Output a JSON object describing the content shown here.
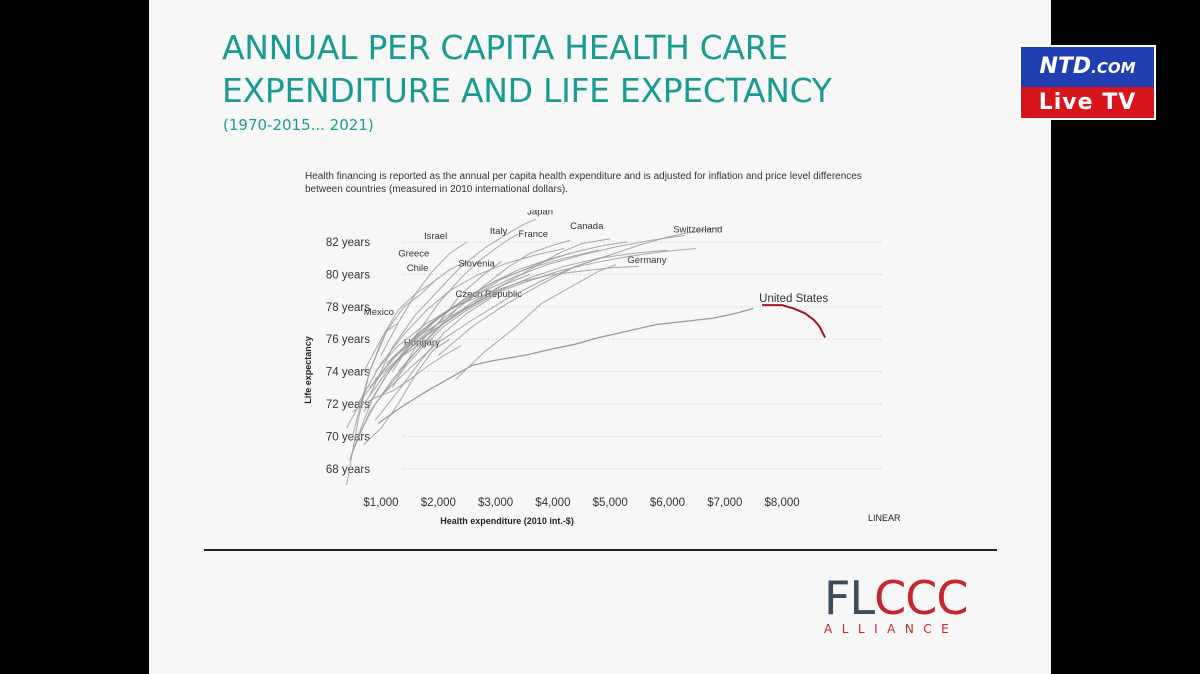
{
  "slide": {
    "title_lines": [
      "ANNUAL PER CAPITA HEALTH CARE",
      "EXPENDITURE AND LIFE EXPECTANCY"
    ],
    "subtitle": "(1970-2015... 2021)",
    "note": "Health financing is reported as the annual per capita health expenditure and is adjusted for inflation and price level differences between countries (measured in 2010 international dollars).",
    "logo": {
      "main_a": "FL",
      "main_b": "CCC",
      "sub": "ALLIANCE"
    },
    "colors": {
      "title": "#1a9b91",
      "accent_red": "#c4262e",
      "line_gray": "#9a9a9a",
      "us_recent": "#a3162a"
    }
  },
  "badge": {
    "top_a": "NTD",
    "top_b": ".COM",
    "bottom": "Live TV"
  },
  "chart_data": {
    "type": "line",
    "xlabel": "Health expenditure (2010 int.-$)",
    "ylabel": "Life expectancy",
    "scale_label": "LINEAR",
    "xlim": [
      0,
      8800
    ],
    "ylim": [
      67,
      84
    ],
    "grid": "horizontal dotted",
    "x_ticks": [
      {
        "value": 1000,
        "label": "$1,000"
      },
      {
        "value": 2000,
        "label": "$2,000"
      },
      {
        "value": 3000,
        "label": "$3,000"
      },
      {
        "value": 4000,
        "label": "$4,000"
      },
      {
        "value": 5000,
        "label": "$5,000"
      },
      {
        "value": 6000,
        "label": "$6,000"
      },
      {
        "value": 7000,
        "label": "$7,000"
      },
      {
        "value": 8000,
        "label": "$8,000"
      }
    ],
    "y_ticks": [
      {
        "value": 68,
        "label": "68 years"
      },
      {
        "value": 70,
        "label": "70 years"
      },
      {
        "value": 72,
        "label": "72 years"
      },
      {
        "value": 74,
        "label": "74 years"
      },
      {
        "value": 76,
        "label": "76 years"
      },
      {
        "value": 78,
        "label": "78 years"
      },
      {
        "value": 80,
        "label": "80 years"
      },
      {
        "value": 82,
        "label": "82 years"
      }
    ],
    "series": [
      {
        "name": "United States",
        "label_at": [
          7600,
          78.3
        ],
        "highlight_from": 7600,
        "x": [
          950,
          1350,
          1800,
          2200,
          2600,
          3000,
          3500,
          4000,
          4400,
          4800,
          5300,
          5800,
          6300,
          6800,
          7200,
          7500,
          7650,
          7800,
          8000,
          8200,
          8400,
          8550,
          8650,
          8750
        ],
        "y": [
          70.8,
          71.8,
          72.8,
          73.6,
          74.4,
          74.7,
          75.0,
          75.4,
          75.7,
          76.1,
          76.5,
          76.9,
          77.1,
          77.3,
          77.6,
          77.9,
          78.1,
          78.1,
          78.1,
          77.9,
          77.6,
          77.2,
          76.8,
          76.1
        ]
      },
      {
        "name": "Switzerland",
        "label_at": [
          6100,
          82.6
        ],
        "x": [
          2000,
          2600,
          3200,
          3800,
          4400,
          5000,
          5500,
          6000,
          6400,
          6900
        ],
        "y": [
          75.0,
          76.8,
          78.2,
          79.4,
          80.5,
          81.2,
          81.8,
          82.3,
          82.6,
          82.9
        ]
      },
      {
        "name": "Japan",
        "label_at": [
          3550,
          83.7
        ],
        "x": [
          800,
          1200,
          1600,
          2000,
          2400,
          2800,
          3200,
          3500,
          3700
        ],
        "y": [
          72.5,
          75.5,
          77.5,
          79.0,
          80.5,
          81.6,
          82.5,
          83.1,
          83.4
        ]
      },
      {
        "name": "Canada",
        "label_at": [
          4300,
          82.8
        ],
        "x": [
          1700,
          2200,
          2700,
          3200,
          3700,
          4100,
          4500,
          5000
        ],
        "y": [
          76.0,
          77.2,
          78.4,
          79.5,
          80.5,
          81.3,
          81.9,
          82.2
        ]
      },
      {
        "name": "France",
        "label_at": [
          3400,
          82.3
        ],
        "x": [
          1300,
          1800,
          2300,
          2800,
          3200,
          3600,
          4000,
          4300
        ],
        "y": [
          74.0,
          76.0,
          77.8,
          79.3,
          80.4,
          81.3,
          81.8,
          82.1
        ]
      },
      {
        "name": "Italy",
        "label_at": [
          2900,
          82.5
        ],
        "x": [
          1200,
          1600,
          2000,
          2400,
          2700,
          3000,
          3200,
          3400
        ],
        "y": [
          74.0,
          76.2,
          78.2,
          79.8,
          80.8,
          81.6,
          82.1,
          82.5
        ]
      },
      {
        "name": "Israel",
        "label_at": [
          1750,
          82.2
        ],
        "x": [
          1000,
          1300,
          1600,
          1900,
          2200,
          2500
        ],
        "y": [
          75.0,
          77.0,
          78.8,
          80.2,
          81.3,
          82.0
        ]
      },
      {
        "name": "Greece",
        "label_at": [
          1300,
          81.1
        ],
        "x": [
          700,
          1000,
          1300,
          1600,
          1900,
          2200,
          2500
        ],
        "y": [
          74.0,
          76.0,
          77.8,
          78.8,
          79.5,
          80.3,
          80.8
        ]
      },
      {
        "name": "Slovenia",
        "label_at": [
          2350,
          80.5
        ],
        "x": [
          1200,
          1600,
          2000,
          2400,
          2800,
          3100
        ],
        "y": [
          73.0,
          75.5,
          77.0,
          78.8,
          80.0,
          80.8
        ]
      },
      {
        "name": "Chile",
        "label_at": [
          1450,
          80.2
        ],
        "x": [
          500,
          800,
          1100,
          1400,
          1700,
          2000
        ],
        "y": [
          70.0,
          74.0,
          76.5,
          78.0,
          78.8,
          79.8
        ]
      },
      {
        "name": "Germany",
        "label_at": [
          5300,
          80.7
        ],
        "x": [
          2300,
          2800,
          3300,
          3800,
          4300,
          4800,
          5100
        ],
        "y": [
          73.5,
          75.2,
          76.6,
          78.2,
          79.2,
          80.2,
          80.6
        ]
      },
      {
        "name": "Czech Republic",
        "label_at": [
          2300,
          78.6
        ],
        "x": [
          900,
          1300,
          1700,
          2100,
          2500,
          2900,
          3100
        ],
        "y": [
          71.0,
          72.8,
          74.7,
          76.4,
          77.6,
          78.5,
          79.0
        ]
      },
      {
        "name": "Mexico",
        "label_at": [
          700,
          77.5
        ],
        "x": [
          400,
          600,
          800,
          1000,
          1100,
          1300
        ],
        "y": [
          67.0,
          71.0,
          74.0,
          75.8,
          76.5,
          77.0
        ]
      },
      {
        "name": "Hungary",
        "label_at": [
          1400,
          75.6
        ],
        "x": [
          700,
          1000,
          1300,
          1600,
          1900,
          2200
        ],
        "y": [
          69.5,
          70.5,
          72.0,
          73.8,
          75.3,
          76.0
        ]
      },
      {
        "x": [
          600,
          1000,
          1400,
          1800,
          2200,
          2700,
          3200,
          3700,
          4200
        ],
        "y": [
          72.0,
          74.5,
          76.3,
          77.8,
          79.0,
          80.0,
          80.7,
          81.2,
          81.6
        ]
      },
      {
        "x": [
          900,
          1400,
          1900,
          2400,
          2900,
          3400,
          3900,
          4400,
          4900,
          5300
        ],
        "y": [
          73.5,
          75.5,
          77.0,
          78.3,
          79.4,
          80.3,
          80.9,
          81.4,
          81.8,
          82.0
        ]
      },
      {
        "x": [
          1100,
          1600,
          2100,
          2700,
          3300,
          3900,
          4500,
          5100,
          5700,
          6300
        ],
        "y": [
          74.5,
          76.2,
          77.6,
          78.8,
          79.8,
          80.6,
          81.2,
          81.7,
          82.1,
          82.4
        ]
      },
      {
        "x": [
          700,
          1100,
          1500,
          2000,
          2500,
          3000,
          3600,
          4200,
          4800
        ],
        "y": [
          71.5,
          73.8,
          75.6,
          77.3,
          78.6,
          79.6,
          80.4,
          81.0,
          81.5
        ]
      },
      {
        "x": [
          500,
          800,
          1200,
          1600,
          2100,
          2600,
          3100,
          3600
        ],
        "y": [
          69.0,
          71.5,
          73.5,
          75.2,
          77.0,
          78.3,
          79.3,
          80.0
        ]
      },
      {
        "x": [
          800,
          1200,
          1700,
          2300,
          2900,
          3500,
          4100,
          4700,
          5300,
          5900,
          6500
        ],
        "y": [
          73.0,
          74.8,
          76.3,
          77.6,
          78.7,
          79.5,
          80.2,
          80.7,
          81.1,
          81.4,
          81.6
        ]
      },
      {
        "x": [
          600,
          900,
          1300,
          1700,
          2100,
          2500,
          2900
        ],
        "y": [
          70.0,
          72.0,
          73.8,
          75.4,
          76.8,
          77.8,
          78.6
        ]
      },
      {
        "x": [
          1000,
          1500,
          2000,
          2600,
          3200,
          3800,
          4400,
          5000
        ],
        "y": [
          72.5,
          74.2,
          75.8,
          77.2,
          78.5,
          79.6,
          80.5,
          81.2
        ]
      },
      {
        "x": [
          400,
          700,
          1000,
          1300,
          1600,
          1900
        ],
        "y": [
          70.5,
          72.5,
          73.8,
          74.8,
          75.5,
          76.0
        ]
      },
      {
        "x": [
          500,
          700,
          900,
          1200,
          1500,
          1800,
          2100,
          2400
        ],
        "y": [
          71.5,
          72.0,
          72.4,
          72.8,
          73.5,
          74.3,
          75.0,
          75.6
        ]
      },
      {
        "x": [
          700,
          1100,
          1600,
          2100,
          2600,
          3100,
          3700,
          4300
        ],
        "y": [
          72.0,
          74.0,
          75.8,
          77.3,
          78.6,
          79.7,
          80.6,
          81.3
        ]
      },
      {
        "x": [
          1300,
          1800,
          2400,
          3000,
          3600,
          4200,
          4800,
          5400,
          6000
        ],
        "y": [
          74.8,
          76.3,
          77.7,
          78.9,
          79.8,
          80.5,
          81.0,
          81.3,
          81.5
        ]
      },
      {
        "x": [
          450,
          650,
          850,
          1100,
          1400,
          1700,
          2000,
          2300
        ],
        "y": [
          68.5,
          70.5,
          72.3,
          73.8,
          75.3,
          76.5,
          77.4,
          78.1
        ]
      },
      {
        "x": [
          900,
          1300,
          1800,
          2400,
          3000,
          3500,
          4000,
          4500,
          5000,
          5500
        ],
        "y": [
          74.0,
          75.6,
          77.0,
          78.2,
          79.0,
          79.6,
          80.0,
          80.2,
          80.4,
          80.5
        ]
      }
    ]
  }
}
